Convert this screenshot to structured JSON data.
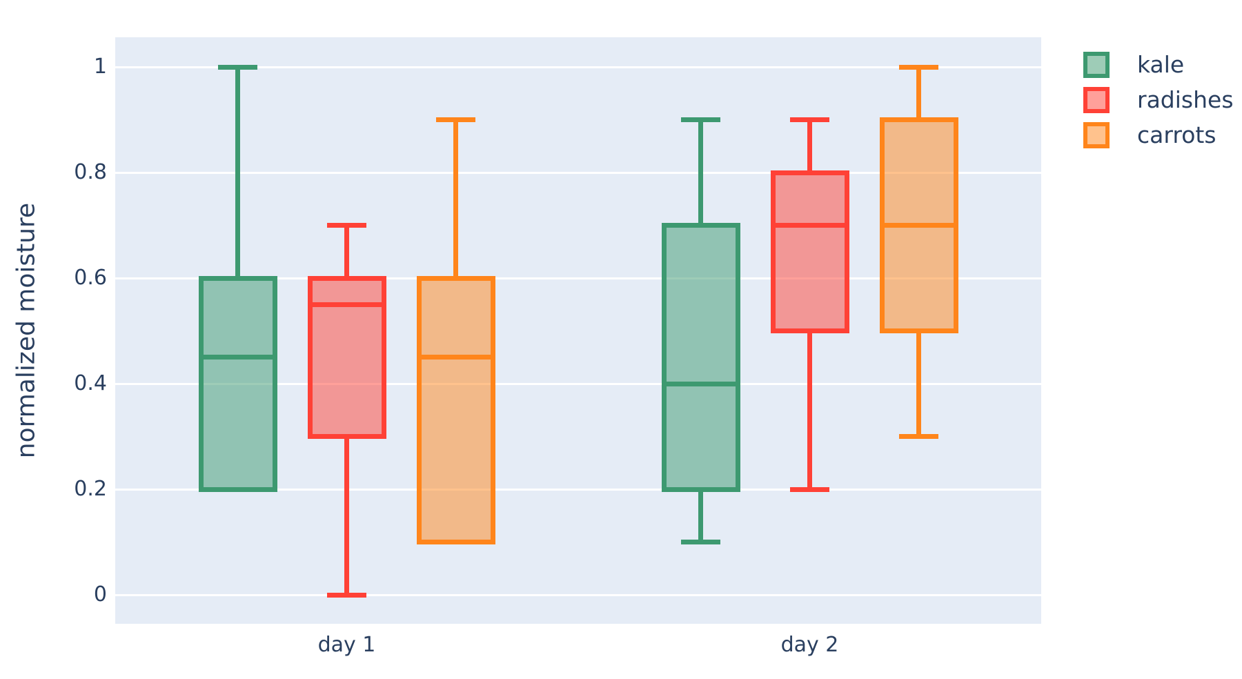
{
  "figure": {
    "background_color": "#ffffff",
    "plot_background_color": "#E5ECF6",
    "gridline_color": "#ffffff",
    "text_color": "#2a3f5f"
  },
  "y_axis": {
    "title": "normalized moisture",
    "ticks": [
      {
        "label": "0",
        "value": 0
      },
      {
        "label": "0.2",
        "value": 0.2
      },
      {
        "label": "0.4",
        "value": 0.4
      },
      {
        "label": "0.6",
        "value": 0.6
      },
      {
        "label": "0.8",
        "value": 0.8
      },
      {
        "label": "1",
        "value": 1
      }
    ]
  },
  "x_axis": {
    "categories": [
      "day 1",
      "day 2"
    ]
  },
  "legend": {
    "items": [
      {
        "label": "kale",
        "color": "#3D9970"
      },
      {
        "label": "radishes",
        "color": "#FF4136"
      },
      {
        "label": "carrots",
        "color": "#FF851B"
      }
    ]
  },
  "chart_data": {
    "type": "box",
    "title": "",
    "xlabel": "",
    "ylabel": "normalized moisture",
    "ylim": [
      0,
      1
    ],
    "grid": true,
    "legend_position": "top-right",
    "categories": [
      "day 1",
      "day 2"
    ],
    "series": [
      {
        "name": "kale",
        "color": "#3D9970",
        "boxes": [
          {
            "category": "day 1",
            "min": 0.2,
            "q1": 0.2,
            "median": 0.45,
            "q3": 0.6,
            "max": 1.0
          },
          {
            "category": "day 2",
            "min": 0.1,
            "q1": 0.2,
            "median": 0.4,
            "q3": 0.7,
            "max": 0.9
          }
        ]
      },
      {
        "name": "radishes",
        "color": "#FF4136",
        "boxes": [
          {
            "category": "day 1",
            "min": 0.0,
            "q1": 0.3,
            "median": 0.55,
            "q3": 0.6,
            "max": 0.7
          },
          {
            "category": "day 2",
            "min": 0.2,
            "q1": 0.5,
            "median": 0.7,
            "q3": 0.8,
            "max": 0.9
          }
        ]
      },
      {
        "name": "carrots",
        "color": "#FF851B",
        "boxes": [
          {
            "category": "day 1",
            "min": 0.1,
            "q1": 0.1,
            "median": 0.45,
            "q3": 0.6,
            "max": 0.9
          },
          {
            "category": "day 2",
            "min": 0.3,
            "q1": 0.5,
            "median": 0.7,
            "q3": 0.9,
            "max": 1.0
          }
        ]
      }
    ]
  }
}
